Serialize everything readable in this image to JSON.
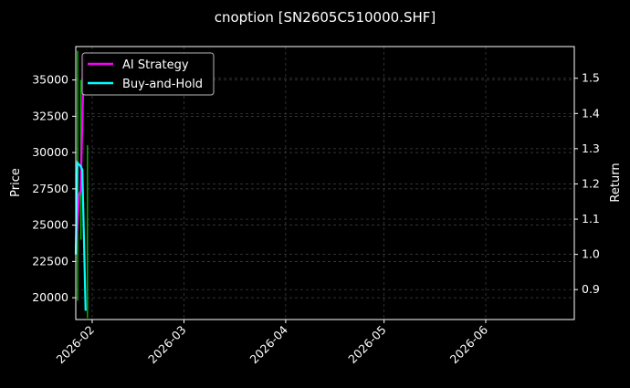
{
  "chart_data": {
    "type": "line",
    "title": "cnoption [SN2605C510000.SHF]",
    "ylabel": "Price",
    "y2label": "Return",
    "ylim": [
      18500,
      37300
    ],
    "y2lim": [
      0.815,
      1.59
    ],
    "xlim": [
      "2026-01-27",
      "2026-06-28"
    ],
    "yticks": [
      20000,
      22500,
      25000,
      27500,
      30000,
      32500,
      35000
    ],
    "y2ticks": [
      0.9,
      1.0,
      1.1,
      1.2,
      1.3,
      1.4,
      1.5
    ],
    "xticks": [
      "2026-02",
      "2026-03",
      "2026-04",
      "2026-05",
      "2026-06"
    ],
    "grid": true,
    "legend": "top-left",
    "price": {
      "dates": [
        "2026-01-27",
        "2026-01-28",
        "2026-01-30"
      ],
      "low": [
        19800,
        24000,
        18600
      ],
      "high": [
        37000,
        35000,
        30500
      ],
      "color": "#00b000"
    },
    "series": [
      {
        "name": "AI Strategy",
        "axis": "right",
        "color": "#ff00ff",
        "dates": [
          "2026-01-27",
          "2026-01-28",
          "2026-01-28T12",
          "2026-01-29T12"
        ],
        "values": [
          1.0,
          1.17,
          1.18,
          1.57
        ]
      },
      {
        "name": "Buy-and-Hold",
        "axis": "right",
        "color": "#00ffff",
        "dates": [
          "2026-01-27",
          "2026-01-27T12",
          "2026-01-28T12",
          "2026-01-29",
          "2026-01-30"
        ],
        "values": [
          1.0,
          1.26,
          1.25,
          1.24,
          0.84
        ]
      }
    ]
  }
}
